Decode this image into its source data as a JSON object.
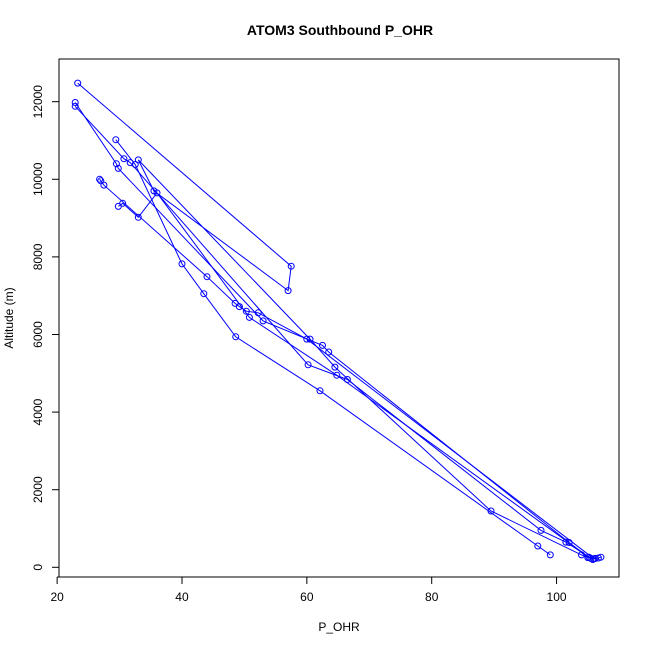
{
  "chart_data": {
    "type": "line",
    "title": "ATOM3 Southbound P_OHR",
    "xlabel": "P_OHR",
    "ylabel": "Altitude (m)",
    "xlim": [
      20.3,
      110.0
    ],
    "ylim": [
      -250,
      13100
    ],
    "x_ticks": [
      20,
      40,
      60,
      80,
      100
    ],
    "y_ticks": [
      0,
      2000,
      4000,
      6000,
      8000,
      10000,
      12000
    ],
    "x_tick_labels": [
      "20",
      "40",
      "60",
      "80",
      "100"
    ],
    "y_tick_labels": [
      "0",
      "2000",
      "4000",
      "6000",
      "8000",
      "10000",
      "12000"
    ],
    "grid": false,
    "line_color": "#0000ff",
    "marker": "open-circle",
    "series": [
      {
        "points": [
          [
            23.3,
            12480
          ],
          [
            57.5,
            7760
          ],
          [
            57.0,
            7130
          ],
          [
            35.5,
            9700
          ],
          [
            33.0,
            10500
          ],
          [
            60.5,
            5880
          ],
          [
            64.5,
            5160
          ],
          [
            89.5,
            1450
          ],
          [
            104.0,
            320
          ],
          [
            105.5,
            230
          ]
        ]
      },
      {
        "points": [
          [
            22.9,
            11980
          ],
          [
            29.5,
            10400
          ],
          [
            29.8,
            10280
          ],
          [
            53.0,
            6350
          ],
          [
            62.5,
            5720
          ],
          [
            63.5,
            5550
          ],
          [
            102.0,
            640
          ],
          [
            105.0,
            250
          ],
          [
            106.2,
            230
          ]
        ]
      },
      {
        "points": [
          [
            22.9,
            11880
          ],
          [
            30.7,
            10530
          ],
          [
            31.7,
            10430
          ],
          [
            60.2,
            5220
          ],
          [
            66.5,
            4840
          ],
          [
            97.5,
            950
          ],
          [
            101.5,
            650
          ],
          [
            105.8,
            200
          ]
        ]
      },
      {
        "points": [
          [
            29.4,
            11020
          ],
          [
            32.5,
            10380
          ],
          [
            40.0,
            7820
          ],
          [
            43.5,
            7050
          ],
          [
            48.6,
            5940
          ],
          [
            62.1,
            4550
          ],
          [
            97.0,
            550
          ],
          [
            99.0,
            320
          ]
        ]
      },
      {
        "points": [
          [
            26.8,
            10000
          ],
          [
            27.0,
            9960
          ],
          [
            27.5,
            9850
          ],
          [
            44.0,
            7490
          ],
          [
            48.5,
            6800
          ],
          [
            49.2,
            6720
          ],
          [
            50.3,
            6600
          ],
          [
            52.2,
            6560
          ],
          [
            60.0,
            5880
          ],
          [
            106.0,
            220
          ],
          [
            106.7,
            240
          ],
          [
            107.1,
            260
          ]
        ]
      },
      {
        "points": [
          [
            29.8,
            9300
          ],
          [
            30.5,
            9380
          ],
          [
            33.0,
            9020
          ],
          [
            36.0,
            9650
          ],
          [
            50.8,
            6440
          ],
          [
            64.8,
            4950
          ],
          [
            105.2,
            260
          ]
        ]
      }
    ]
  }
}
